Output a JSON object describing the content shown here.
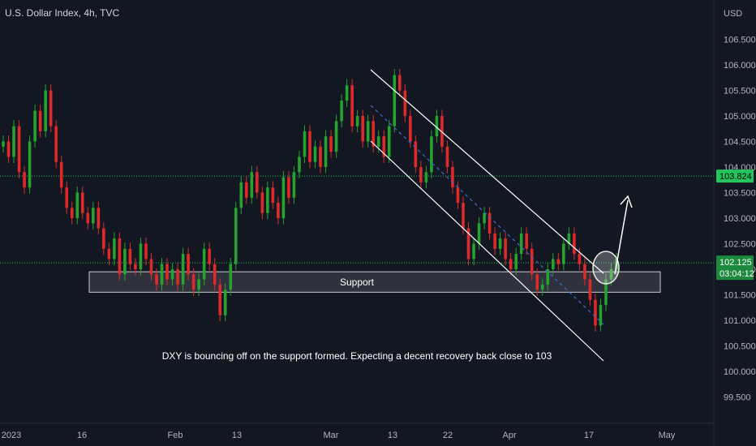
{
  "chart_data": {
    "type": "candlestick",
    "title": "U.S. Dollar Index, 4h, TVC",
    "currency": "USD",
    "ylim": [
      99.0,
      107.2
    ],
    "y_ticks": [
      "106.500",
      "106.000",
      "105.500",
      "105.000",
      "104.500",
      "104.000",
      "103.500",
      "103.000",
      "102.500",
      "102.000",
      "101.500",
      "101.000",
      "100.500",
      "100.000",
      "99.500"
    ],
    "x_ticks": [
      "2023",
      "16",
      "Feb",
      "13",
      "Mar",
      "13",
      "22",
      "Apr",
      "17",
      "May"
    ],
    "price_levels": {
      "resistance": "103.824",
      "current": "102.125",
      "countdown": "03:04:12"
    },
    "support_zone": {
      "label": "Support",
      "low": 101.55,
      "high": 101.95
    },
    "annotation": "DXY is bouncing off on the support formed. Expecting a decent recovery back close to 103",
    "colors": {
      "up": "#26a32f",
      "down": "#e02a2a",
      "resistance_line": "#22c55e",
      "current_badge": "#1b8a3c",
      "channel": "#ffffff",
      "midline": "#3b6bd6"
    },
    "closes": [
      104.5,
      104.2,
      104.8,
      103.9,
      103.6,
      104.5,
      105.1,
      104.7,
      105.5,
      104.8,
      104.1,
      103.6,
      103.2,
      103.0,
      103.5,
      103.1,
      102.9,
      103.2,
      102.8,
      102.4,
      102.2,
      102.6,
      101.9,
      102.4,
      102.1,
      102.0,
      102.5,
      102.2,
      101.9,
      101.7,
      102.1,
      101.8,
      102.0,
      101.7,
      102.3,
      101.9,
      101.6,
      101.8,
      102.4,
      102.1,
      101.7,
      101.1,
      101.6,
      102.1,
      103.2,
      103.7,
      103.4,
      103.9,
      103.5,
      103.1,
      103.6,
      103.3,
      103.0,
      103.8,
      103.4,
      103.9,
      104.2,
      104.7,
      104.1,
      104.4,
      104.0,
      104.6,
      104.3,
      104.9,
      105.3,
      105.6,
      104.8,
      105.0,
      104.5,
      104.9,
      104.4,
      104.6,
      104.2,
      104.8,
      105.8,
      105.5,
      105.0,
      104.5,
      104.0,
      103.7,
      103.9,
      104.6,
      105.0,
      104.4,
      104.0,
      103.6,
      103.3,
      102.8,
      102.2,
      102.5,
      102.9,
      103.1,
      102.7,
      102.4,
      102.6,
      102.2,
      102.0,
      102.3,
      102.7,
      102.4,
      101.9,
      101.6,
      101.7,
      102.0,
      102.2,
      102.1,
      102.5,
      102.7,
      102.3,
      102.1,
      101.8,
      101.4,
      100.9,
      101.3,
      101.8,
      102.0,
      102.2
    ]
  }
}
